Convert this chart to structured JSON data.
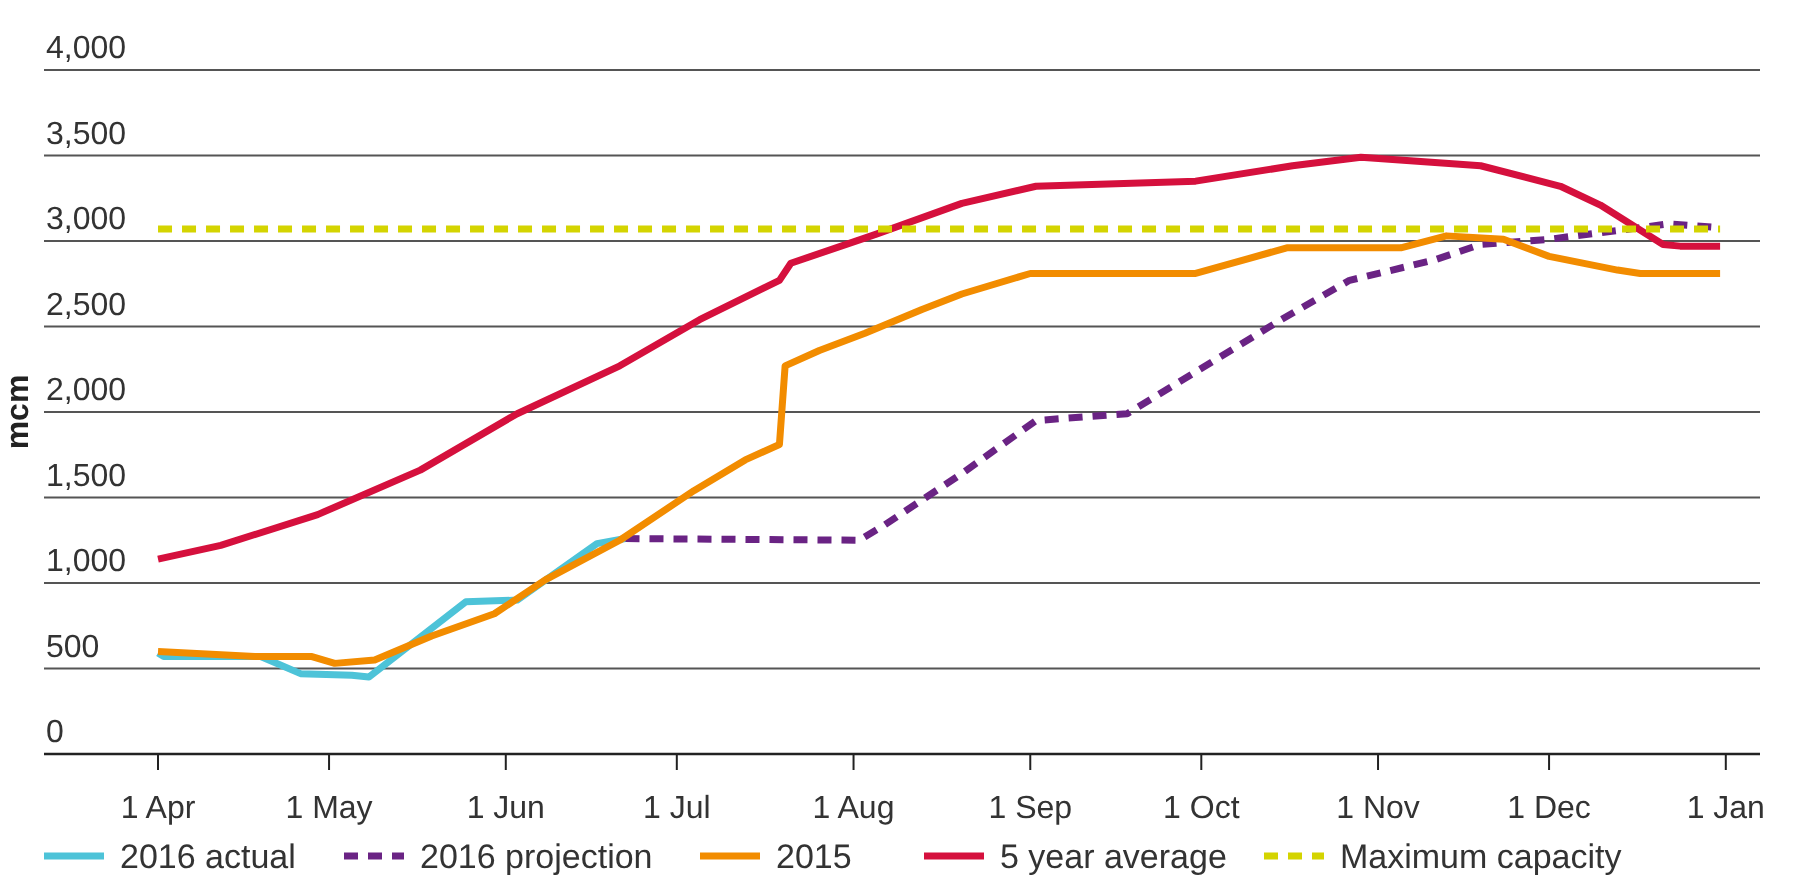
{
  "chart_data": {
    "type": "line",
    "ylabel": "mcm",
    "xlim": [
      "2016-03-12",
      "2017-01-07"
    ],
    "xticks": [
      {
        "value": "2016-04-01",
        "label": "1 Apr"
      },
      {
        "value": "2016-05-01",
        "label": "1 May"
      },
      {
        "value": "2016-06-01",
        "label": "1 Jun"
      },
      {
        "value": "2016-07-01",
        "label": "1 Jul"
      },
      {
        "value": "2016-08-01",
        "label": "1 Aug"
      },
      {
        "value": "2016-09-01",
        "label": "1 Sep"
      },
      {
        "value": "2016-10-01",
        "label": "1 Oct"
      },
      {
        "value": "2016-11-01",
        "label": "1 Nov"
      },
      {
        "value": "2016-12-01",
        "label": "1 Dec"
      },
      {
        "value": "2017-01-01",
        "label": "1 Jan"
      }
    ],
    "ylim": [
      0,
      4000
    ],
    "yticks": [
      {
        "value": 0,
        "label": "0"
      },
      {
        "value": 500,
        "label": "500"
      },
      {
        "value": 1000,
        "label": "1,000"
      },
      {
        "value": 1500,
        "label": "1,500"
      },
      {
        "value": 2000,
        "label": "2,000"
      },
      {
        "value": 2500,
        "label": "2,500"
      },
      {
        "value": 3000,
        "label": "3,000"
      },
      {
        "value": 3500,
        "label": "3,500"
      },
      {
        "value": 4000,
        "label": "4,000"
      }
    ],
    "grid": "y",
    "legend": "bottom",
    "marker": "none",
    "series": [
      {
        "name": "2016 actual",
        "color": "#4dc3d8",
        "line_style": "solid",
        "x": [
          "2016-04-01",
          "2016-04-02",
          "2016-04-19",
          "2016-04-26",
          "2016-05-05",
          "2016-05-08",
          "2016-05-25",
          "2016-06-03",
          "2016-06-17",
          "2016-06-22"
        ],
        "values": [
          590,
          570,
          570,
          470,
          460,
          450,
          890,
          900,
          1230,
          1260
        ]
      },
      {
        "name": "2016 projection",
        "color": "#6a2384",
        "line_style": "dashed",
        "x": [
          "2016-06-22",
          "2016-08-02",
          "2016-08-06",
          "2016-08-20",
          "2016-09-02",
          "2016-09-18",
          "2016-10-15",
          "2016-10-27",
          "2016-11-11",
          "2016-11-19",
          "2016-12-01",
          "2016-12-22",
          "2016-12-30"
        ],
        "values": [
          1260,
          1250,
          1330,
          1640,
          1950,
          1990,
          2540,
          2770,
          2890,
          2980,
          3010,
          3100,
          3080
        ]
      },
      {
        "name": "2015",
        "color": "#f28c00",
        "line_style": "solid",
        "x": [
          "2016-04-01",
          "2016-04-18",
          "2016-04-28",
          "2016-05-02",
          "2016-05-09",
          "2016-05-19",
          "2016-05-30",
          "2016-06-08",
          "2016-06-21",
          "2016-07-04",
          "2016-07-13",
          "2016-07-19",
          "2016-07-20",
          "2016-07-26",
          "2016-08-03",
          "2016-08-13",
          "2016-08-20",
          "2016-09-01",
          "2016-09-30",
          "2016-10-16",
          "2016-11-05",
          "2016-11-13",
          "2016-11-23",
          "2016-12-01",
          "2016-12-13",
          "2016-12-17",
          "2016-12-31"
        ],
        "values": [
          600,
          570,
          570,
          530,
          550,
          690,
          820,
          1020,
          1250,
          1540,
          1720,
          1810,
          2270,
          2360,
          2460,
          2600,
          2690,
          2810,
          2810,
          2960,
          2960,
          3030,
          3010,
          2910,
          2830,
          2810,
          2810
        ]
      },
      {
        "name": "5 year average",
        "color": "#d5103d",
        "line_style": "solid",
        "x": [
          "2016-04-01",
          "2016-04-12",
          "2016-04-29",
          "2016-05-17",
          "2016-06-03",
          "2016-06-21",
          "2016-07-05",
          "2016-07-19",
          "2016-07-21",
          "2016-08-05",
          "2016-08-20",
          "2016-09-02",
          "2016-09-30",
          "2016-10-17",
          "2016-10-29",
          "2016-11-19",
          "2016-12-03",
          "2016-12-10",
          "2016-12-21",
          "2016-12-24",
          "2016-12-31"
        ],
        "values": [
          1140,
          1220,
          1400,
          1660,
          1990,
          2270,
          2540,
          2770,
          2870,
          3040,
          3220,
          3320,
          3350,
          3440,
          3490,
          3440,
          3320,
          3210,
          2980,
          2970,
          2970
        ]
      },
      {
        "name": "Maximum capacity",
        "color": "#d4d400",
        "line_style": "dashed",
        "x": [
          "2016-04-01",
          "2016-12-31"
        ],
        "values": [
          3070,
          3070
        ]
      }
    ]
  }
}
